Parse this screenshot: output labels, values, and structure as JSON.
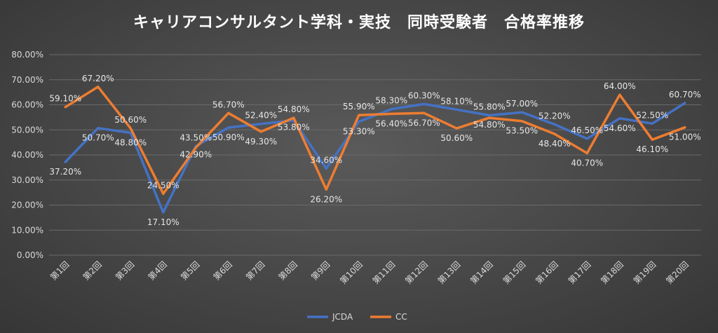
{
  "chart_data": {
    "type": "line",
    "title": "キャリアコンサルタント学科・実技　同時受験者　合格率推移",
    "categories": [
      "第1回",
      "第2回",
      "第3回",
      "第4回",
      "第5回",
      "第6回",
      "第7回",
      "第8回",
      "第9回",
      "第10回",
      "第11回",
      "第12回",
      "第13回",
      "第14回",
      "第15回",
      "第16回",
      "第17回",
      "第18回",
      "第19回",
      "第20回"
    ],
    "ylim": [
      0,
      80
    ],
    "yticks": [
      "0.00%",
      "10.00%",
      "20.00%",
      "30.00%",
      "40.00%",
      "50.00%",
      "60.00%",
      "70.00%",
      "80.00%"
    ],
    "grid": true,
    "legend_position": "bottom",
    "series": [
      {
        "name": "JCDA",
        "color": "#4472C4",
        "values": [
          37.2,
          50.7,
          48.8,
          17.1,
          43.5,
          50.9,
          52.4,
          53.8,
          34.6,
          53.3,
          58.3,
          60.3,
          58.1,
          55.8,
          57.0,
          52.2,
          46.5,
          54.6,
          52.5,
          60.7
        ],
        "labels": [
          "37.20%",
          "50.70%",
          "48.80%",
          "17.10%",
          "43.50%",
          "50.90%",
          "52.40%",
          "53.80%",
          "34.60%",
          "53.30%",
          "58.30%",
          "60.30%",
          "58.10%",
          "55.80%",
          "57.00%",
          "52.20%",
          "46.50%",
          "54.60%",
          "52.50%",
          "60.70%"
        ]
      },
      {
        "name": "CC",
        "color": "#ED7D31",
        "values": [
          59.1,
          67.2,
          50.6,
          24.5,
          42.9,
          56.7,
          49.3,
          54.8,
          26.2,
          55.9,
          56.4,
          56.7,
          50.6,
          54.8,
          53.5,
          48.4,
          40.7,
          64.0,
          46.1,
          51.0
        ],
        "labels": [
          "59.10%",
          "67.20%",
          "50.60%",
          "24.50%",
          "42.90%",
          "56.70%",
          "49.30%",
          "54.80%",
          "26.20%",
          "55.90%",
          "56.40%",
          "56.70%",
          "50.60%",
          "54.80%",
          "53.50%",
          "48.40%",
          "40.70%",
          "64.00%",
          "46.10%",
          "51.00%"
        ]
      }
    ]
  }
}
